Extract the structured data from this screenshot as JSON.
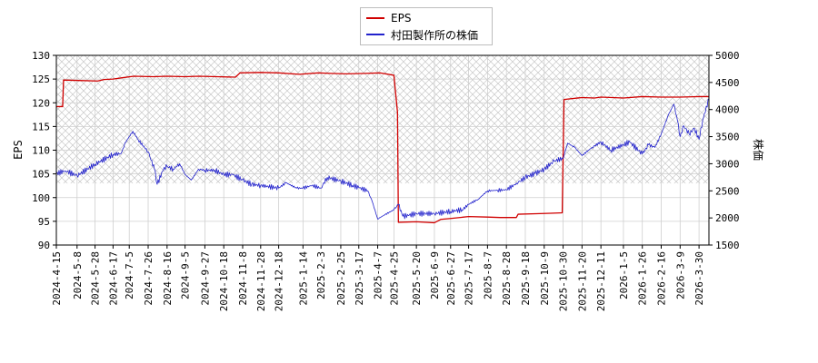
{
  "chart_data": {
    "type": "line",
    "legend": {
      "placement": "top-center",
      "entries": [
        {
          "label": "EPS",
          "color": "#d00000"
        },
        {
          "label": "村田製作所の株価",
          "color": "#2222cc"
        }
      ]
    },
    "ylabel_left": "EPS",
    "ylabel_right": "株価",
    "ylim_left": [
      90,
      130
    ],
    "yticks_left": [
      90,
      95,
      100,
      105,
      110,
      115,
      120,
      125,
      130
    ],
    "ylim_right": [
      1500,
      5000
    ],
    "yticks_right": [
      1500,
      2000,
      2500,
      3000,
      3500,
      4000,
      4500,
      5000
    ],
    "xlim": [
      "2024-04-15",
      "2026-04-10"
    ],
    "xticks": [
      "2024-4-15",
      "2024-5-8",
      "2024-5-28",
      "2024-6-17",
      "2024-7-5",
      "2024-7-26",
      "2024-8-16",
      "2024-9-5",
      "2024-9-27",
      "2024-10-18",
      "2024-11-8",
      "2024-11-28",
      "2024-12-18",
      "2025-1-14",
      "2025-2-3",
      "2025-2-25",
      "2025-3-17",
      "2025-4-7",
      "2025-4-25",
      "2025-5-20",
      "2025-6-9",
      "2025-6-27",
      "2025-7-17",
      "2025-8-7",
      "2025-8-28",
      "2025-9-18",
      "2025-10-9",
      "2025-10-30",
      "2025-11-20",
      "2025-12-11",
      "2026-1-5",
      "2026-1-26",
      "2026-2-16",
      "2026-3-9",
      "2026-3-30"
    ],
    "grid": true,
    "hatched_band_left": [
      103,
      130
    ],
    "series": [
      {
        "name": "EPS",
        "axis": "left",
        "color": "#d00000",
        "points": [
          [
            "2024-04-15",
            119.2
          ],
          [
            "2024-04-22",
            119.2
          ],
          [
            "2024-04-23",
            124.8
          ],
          [
            "2024-05-10",
            124.7
          ],
          [
            "2024-05-31",
            124.6
          ],
          [
            "2024-06-07",
            124.9
          ],
          [
            "2024-06-17",
            125.0
          ],
          [
            "2024-06-28",
            125.3
          ],
          [
            "2024-07-10",
            125.6
          ],
          [
            "2024-08-01",
            125.5
          ],
          [
            "2024-08-16",
            125.6
          ],
          [
            "2024-09-05",
            125.5
          ],
          [
            "2024-09-20",
            125.6
          ],
          [
            "2024-10-10",
            125.5
          ],
          [
            "2024-10-31",
            125.4
          ],
          [
            "2024-11-05",
            126.3
          ],
          [
            "2024-11-28",
            126.4
          ],
          [
            "2024-12-18",
            126.3
          ],
          [
            "2025-01-10",
            126.0
          ],
          [
            "2025-01-31",
            126.3
          ],
          [
            "2025-02-14",
            126.2
          ],
          [
            "2025-03-03",
            126.1
          ],
          [
            "2025-03-24",
            126.2
          ],
          [
            "2025-04-10",
            126.3
          ],
          [
            "2025-04-25",
            125.8
          ],
          [
            "2025-04-29",
            118.0
          ],
          [
            "2025-04-30",
            94.8
          ],
          [
            "2025-05-20",
            94.9
          ],
          [
            "2025-06-09",
            94.7
          ],
          [
            "2025-06-16",
            95.4
          ],
          [
            "2025-06-27",
            95.6
          ],
          [
            "2025-07-17",
            96.0
          ],
          [
            "2025-08-07",
            95.9
          ],
          [
            "2025-08-21",
            95.8
          ],
          [
            "2025-09-08",
            95.8
          ],
          [
            "2025-09-10",
            96.5
          ],
          [
            "2025-09-30",
            96.6
          ],
          [
            "2025-10-16",
            96.7
          ],
          [
            "2025-10-29",
            96.8
          ],
          [
            "2025-10-31",
            120.7
          ],
          [
            "2025-11-20",
            121.1
          ],
          [
            "2025-12-04",
            121.0
          ],
          [
            "2025-12-11",
            121.2
          ],
          [
            "2026-01-05",
            121.0
          ],
          [
            "2026-01-26",
            121.3
          ],
          [
            "2026-02-16",
            121.2
          ],
          [
            "2026-03-09",
            121.2
          ],
          [
            "2026-03-30",
            121.3
          ],
          [
            "2026-04-10",
            121.3
          ]
        ]
      },
      {
        "name": "村田製作所の株価",
        "axis": "right",
        "color": "#2222cc",
        "points": [
          [
            "2024-04-15",
            2820
          ],
          [
            "2024-04-25",
            2870
          ],
          [
            "2024-05-08",
            2780
          ],
          [
            "2024-05-28",
            2990
          ],
          [
            "2024-06-17",
            3170
          ],
          [
            "2024-06-26",
            3190
          ],
          [
            "2024-07-01",
            3400
          ],
          [
            "2024-07-09",
            3600
          ],
          [
            "2024-07-15",
            3440
          ],
          [
            "2024-07-22",
            3300
          ],
          [
            "2024-07-26",
            3220
          ],
          [
            "2024-08-02",
            2900
          ],
          [
            "2024-08-05",
            2620
          ],
          [
            "2024-08-12",
            2900
          ],
          [
            "2024-08-16",
            2950
          ],
          [
            "2024-08-23",
            2900
          ],
          [
            "2024-08-30",
            3000
          ],
          [
            "2024-09-05",
            2800
          ],
          [
            "2024-09-12",
            2700
          ],
          [
            "2024-09-20",
            2900
          ],
          [
            "2024-09-27",
            2880
          ],
          [
            "2024-10-08",
            2880
          ],
          [
            "2024-10-18",
            2800
          ],
          [
            "2024-10-28",
            2800
          ],
          [
            "2024-11-08",
            2700
          ],
          [
            "2024-11-18",
            2620
          ],
          [
            "2024-11-28",
            2600
          ],
          [
            "2024-12-18",
            2550
          ],
          [
            "2024-12-26",
            2650
          ],
          [
            "2025-01-07",
            2550
          ],
          [
            "2025-01-14",
            2550
          ],
          [
            "2025-01-24",
            2600
          ],
          [
            "2025-02-03",
            2550
          ],
          [
            "2025-02-10",
            2750
          ],
          [
            "2025-02-25",
            2680
          ],
          [
            "2025-03-10",
            2600
          ],
          [
            "2025-03-17",
            2560
          ],
          [
            "2025-03-27",
            2500
          ],
          [
            "2025-04-01",
            2300
          ],
          [
            "2025-04-07",
            1980
          ],
          [
            "2025-04-14",
            2050
          ],
          [
            "2025-04-25",
            2150
          ],
          [
            "2025-04-30",
            2250
          ],
          [
            "2025-05-05",
            2030
          ],
          [
            "2025-05-12",
            2050
          ],
          [
            "2025-05-20",
            2080
          ],
          [
            "2025-06-09",
            2080
          ],
          [
            "2025-06-27",
            2120
          ],
          [
            "2025-07-10",
            2150
          ],
          [
            "2025-07-17",
            2250
          ],
          [
            "2025-07-28",
            2350
          ],
          [
            "2025-08-07",
            2500
          ],
          [
            "2025-08-18",
            2510
          ],
          [
            "2025-08-28",
            2520
          ],
          [
            "2025-09-10",
            2650
          ],
          [
            "2025-09-18",
            2750
          ],
          [
            "2025-09-29",
            2820
          ],
          [
            "2025-10-09",
            2900
          ],
          [
            "2025-10-20",
            3050
          ],
          [
            "2025-10-30",
            3100
          ],
          [
            "2025-11-04",
            3380
          ],
          [
            "2025-11-12",
            3300
          ],
          [
            "2025-11-20",
            3150
          ],
          [
            "2025-12-01",
            3300
          ],
          [
            "2025-12-11",
            3400
          ],
          [
            "2025-12-22",
            3250
          ],
          [
            "2026-01-05",
            3350
          ],
          [
            "2026-01-12",
            3400
          ],
          [
            "2026-01-26",
            3180
          ],
          [
            "2026-02-02",
            3350
          ],
          [
            "2026-02-09",
            3300
          ],
          [
            "2026-02-16",
            3550
          ],
          [
            "2026-02-24",
            3900
          ],
          [
            "2026-03-02",
            4100
          ],
          [
            "2026-03-06",
            3800
          ],
          [
            "2026-03-09",
            3500
          ],
          [
            "2026-03-13",
            3700
          ],
          [
            "2026-03-19",
            3550
          ],
          [
            "2026-03-25",
            3650
          ],
          [
            "2026-03-30",
            3450
          ],
          [
            "2026-04-03",
            3800
          ],
          [
            "2026-04-10",
            4200
          ]
        ]
      }
    ]
  }
}
